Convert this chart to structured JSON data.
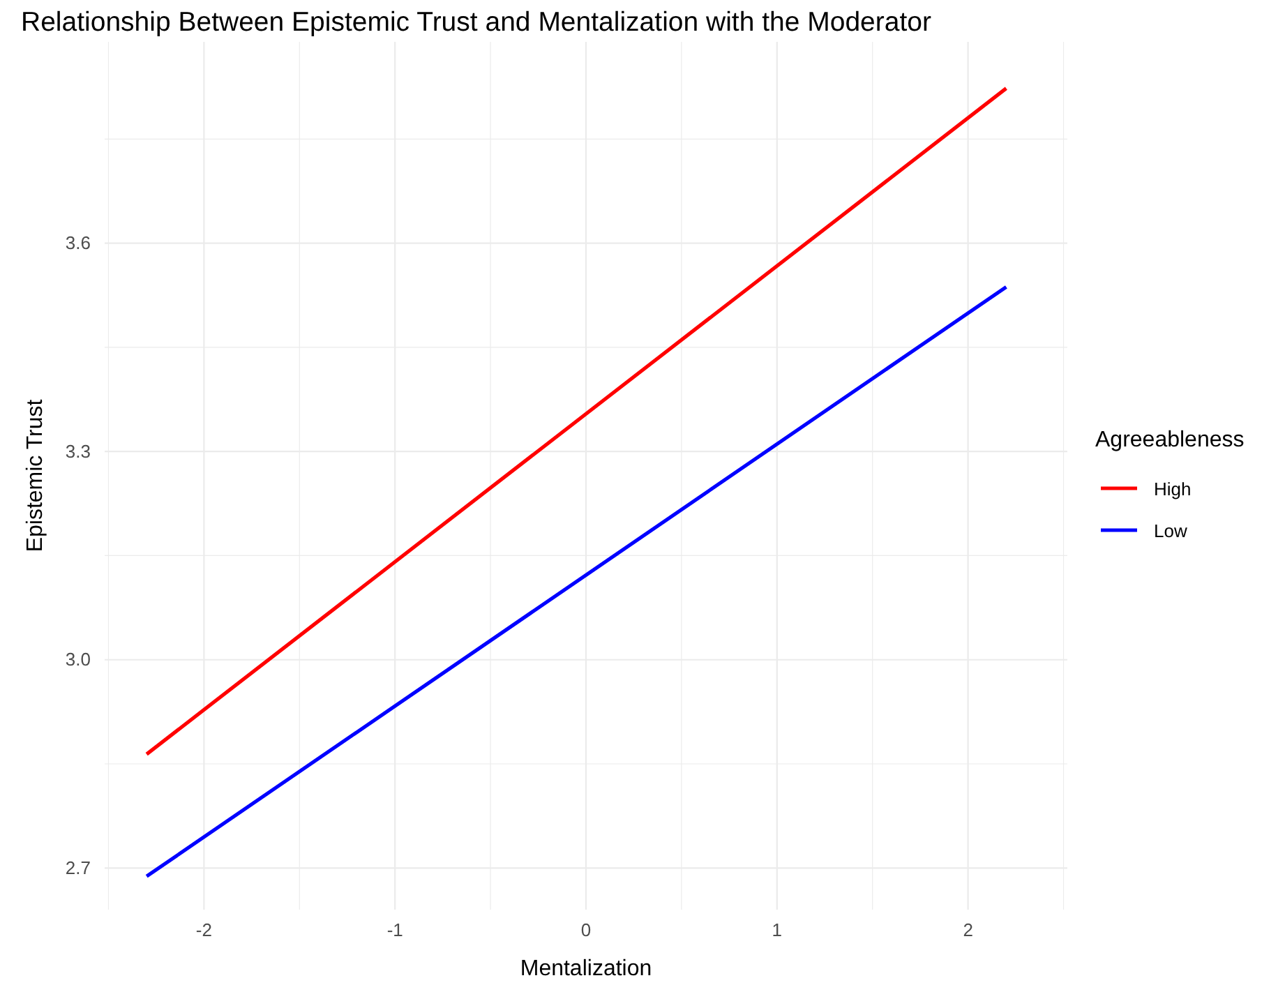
{
  "chart_data": {
    "type": "line",
    "title": "Relationship Between Epistemic Trust and Mentalization with the Moderator",
    "xlabel": "Mentalization",
    "ylabel": "Epistemic Trust",
    "legend_title": "Agreeableness",
    "legend": "right",
    "grid": true,
    "line_style": "solid",
    "marker": "none",
    "xlim": [
      -2.52,
      2.52
    ],
    "ylim": [
      2.64,
      3.89
    ],
    "xticks": [
      {
        "value": -2.5,
        "label": null
      },
      -2,
      {
        "value": -1.5,
        "label": null
      },
      -1,
      {
        "value": -0.5,
        "label": null
      },
      0,
      {
        "value": 0.5,
        "label": null
      },
      1,
      {
        "value": 1.5,
        "label": null
      },
      2,
      {
        "value": 2.5,
        "label": null
      }
    ],
    "yticks": [
      {
        "value": 2.7,
        "label": "2.7"
      },
      {
        "value": 2.85,
        "label": null
      },
      {
        "value": 3.0,
        "label": "3.0"
      },
      {
        "value": 3.15,
        "label": null
      },
      {
        "value": 3.3,
        "label": "3.3"
      },
      {
        "value": 3.45,
        "label": null
      },
      {
        "value": 3.6,
        "label": "3.6"
      },
      {
        "value": 3.75,
        "label": null
      }
    ],
    "x": [
      -2.3,
      2.2
    ],
    "series": [
      {
        "name": "High",
        "color": "#ff0000",
        "values": [
          2.864,
          3.823
        ]
      },
      {
        "name": "Low",
        "color": "#0000ff",
        "values": [
          2.688,
          3.537
        ]
      }
    ]
  }
}
